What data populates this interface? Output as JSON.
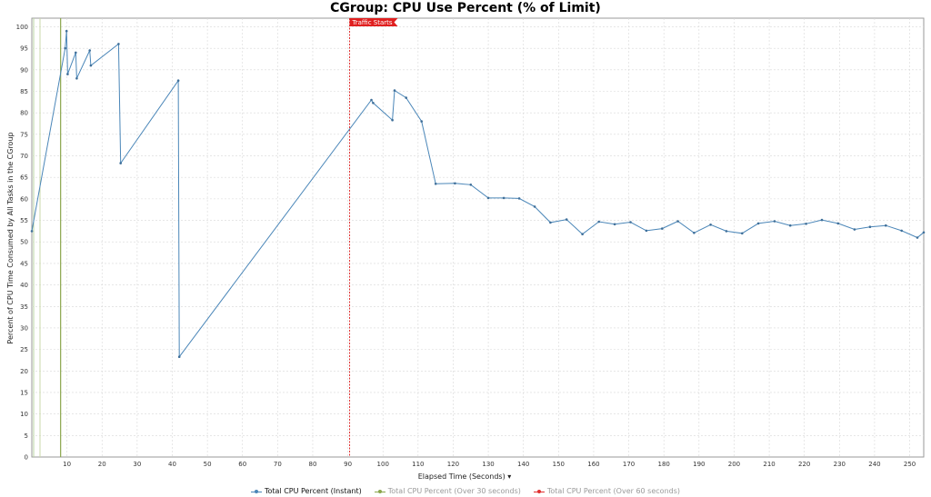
{
  "chart_data": {
    "type": "line",
    "title": "CGroup: CPU Use Percent (% of Limit)",
    "xlabel": "Elapsed Time (Seconds) ▾",
    "ylabel": "Percent of CPU Time Consumed by All Tasks in the CGroup",
    "xlim": [
      0,
      254
    ],
    "ylim": [
      0,
      102
    ],
    "xticks": [
      10,
      20,
      30,
      40,
      50,
      60,
      70,
      80,
      90,
      100,
      110,
      120,
      130,
      140,
      150,
      160,
      170,
      180,
      190,
      200,
      210,
      220,
      230,
      240,
      250
    ],
    "yticks": [
      0,
      5,
      10,
      15,
      20,
      25,
      30,
      35,
      40,
      45,
      50,
      55,
      60,
      65,
      70,
      75,
      80,
      85,
      90,
      95,
      100
    ],
    "grid": true,
    "legend_position": "bottom",
    "series": [
      {
        "name": "Total CPU Percent (Instant)",
        "color": "#4a86b8",
        "x": [
          0,
          9.5,
          9.9,
          10.2,
          12.5,
          12.8,
          16.5,
          16.8,
          24.7,
          25.3,
          41.7,
          42.0,
          96.7,
          97.2,
          102.7,
          103.3,
          106.6,
          111,
          115,
          120.5,
          125,
          130,
          134.4,
          138.8,
          143.2,
          147.7,
          152.3,
          156.8,
          161.5,
          166,
          170.5,
          175,
          179.5,
          184,
          188.6,
          193.3,
          197.8,
          202.3,
          206.9,
          211.5,
          216,
          220.5,
          225,
          229.6,
          234.3,
          238.7,
          243.2,
          247.7,
          252.2,
          254
        ],
        "y": [
          52.5,
          95,
          99,
          89,
          94,
          88,
          94.5,
          91,
          96,
          68.3,
          87.5,
          23.3,
          83,
          82.3,
          78.3,
          85.2,
          83.5,
          78,
          63.5,
          63.6,
          63.3,
          60.2,
          60.2,
          60.1,
          58.2,
          54.5,
          55.2,
          51.8,
          54.7,
          54.1,
          54.6,
          52.6,
          53.1,
          54.8,
          52.1,
          54,
          52.5,
          52,
          54.3,
          54.8,
          53.8,
          54.2,
          55.1,
          54.3,
          52.9,
          53.5,
          53.8,
          52.6,
          51,
          52.2
        ]
      },
      {
        "name": "Total CPU Percent (Over 30 seconds)",
        "color": "#8aa64c",
        "markers_x": [
          8.2
        ]
      },
      {
        "name": "Total CPU Percent (Over 60 seconds)",
        "color": "#e03030",
        "markers_x": [
          90.5
        ]
      }
    ],
    "annotations": [
      {
        "text": "Traffic Starts",
        "x": 90.5,
        "color": "#e02020"
      }
    ]
  }
}
